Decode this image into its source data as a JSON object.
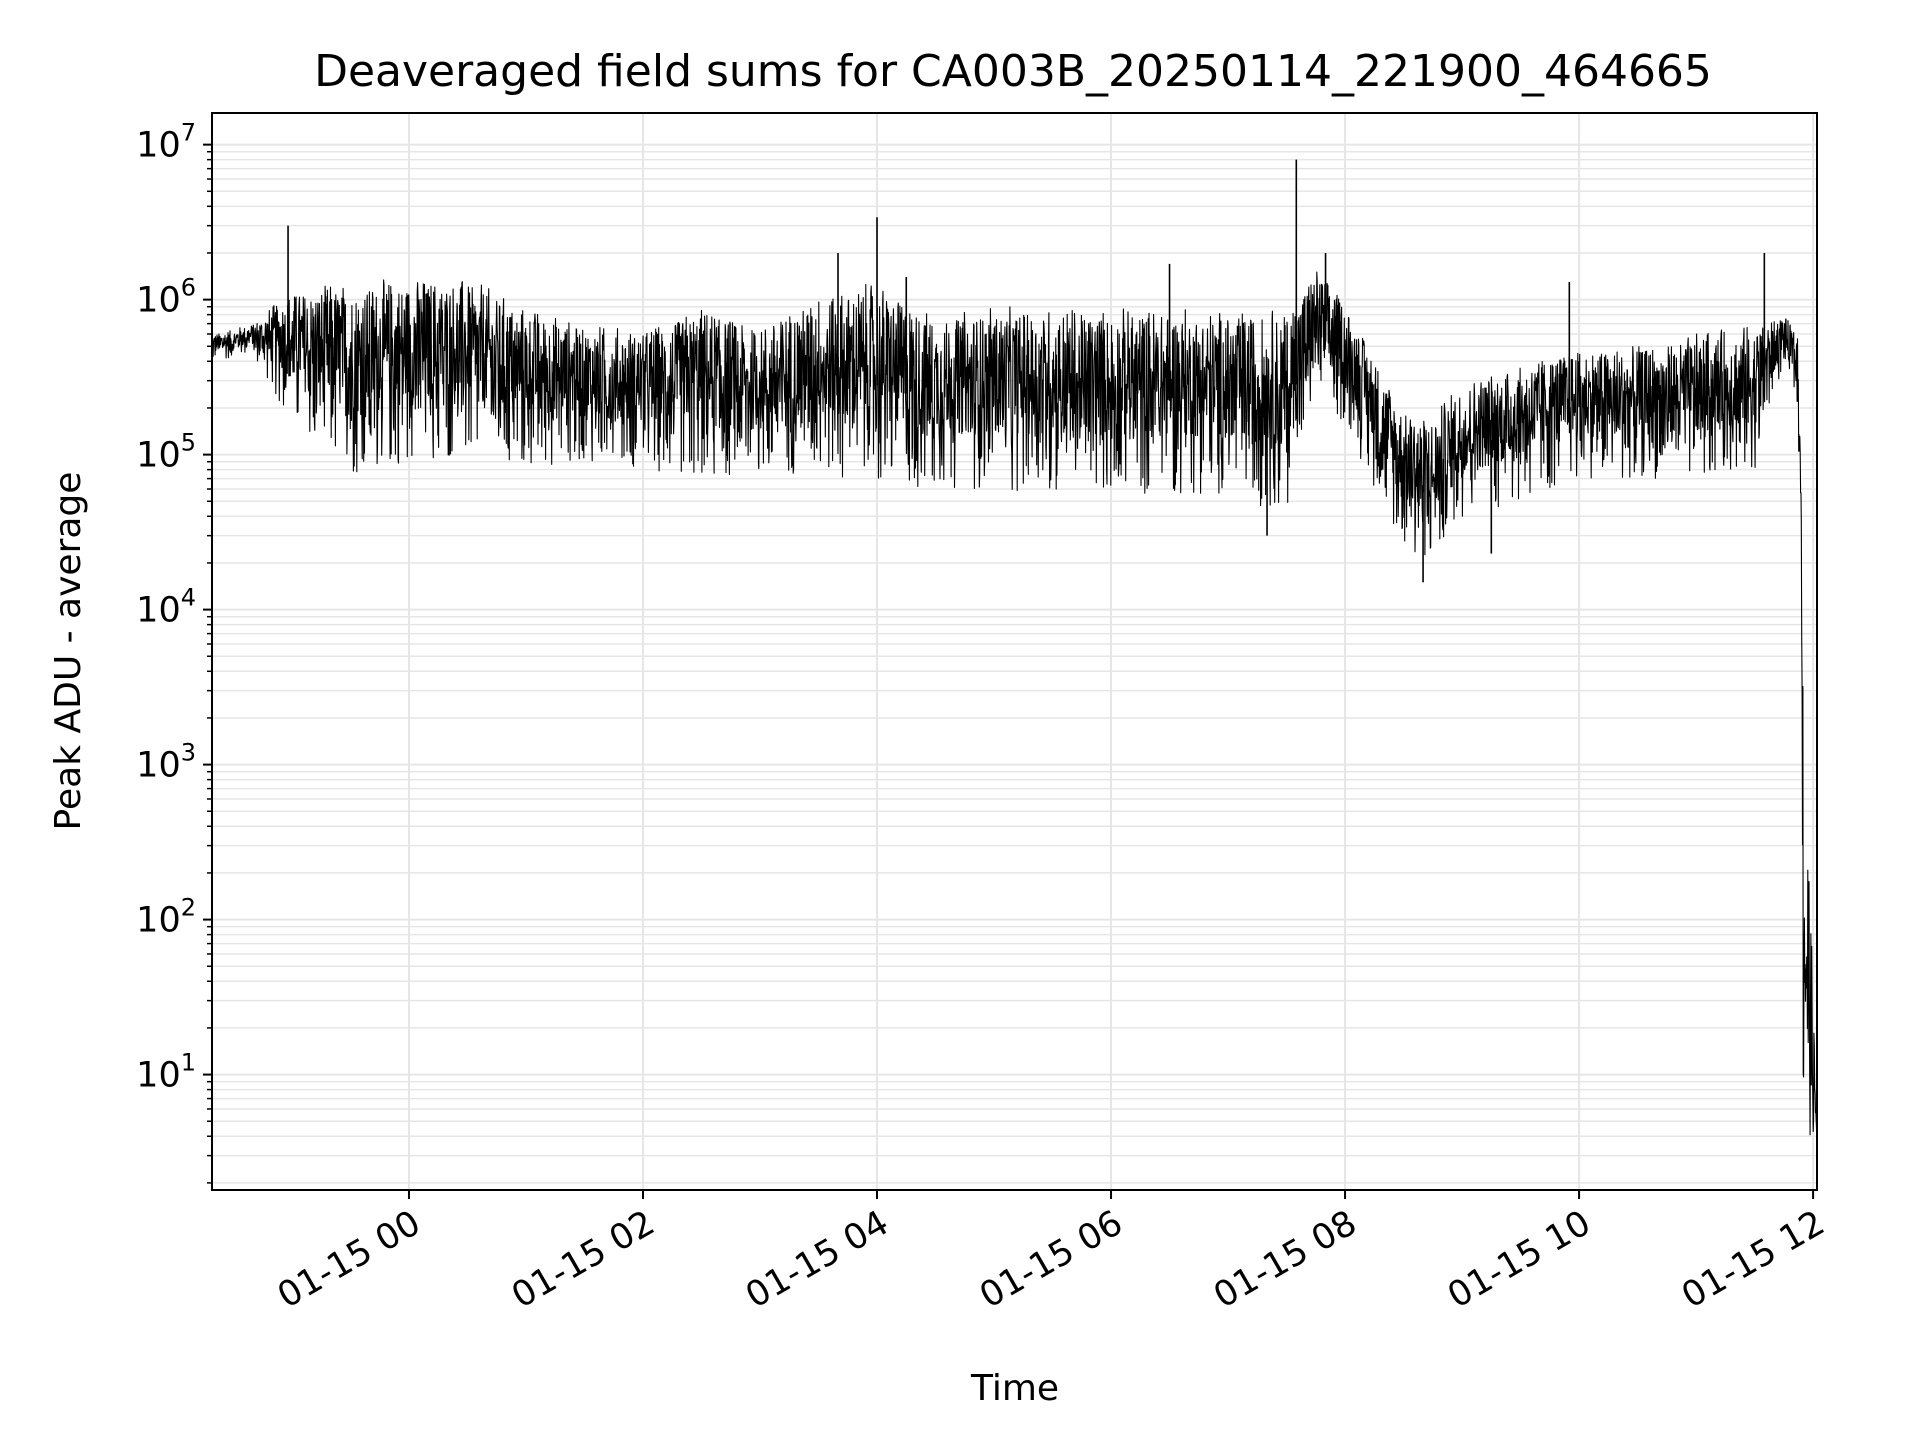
{
  "chart_data": {
    "type": "line",
    "title": "Deaveraged field sums for CA003B_20250114_221900_464665",
    "xlabel": "Time",
    "ylabel": "Peak ADU - average",
    "yscale": "log",
    "ylim": [
      1.8,
      16000000
    ],
    "xlim": [
      "01-14 22:19",
      "01-15 12:02"
    ],
    "grid": true,
    "line_color": "#000000",
    "grid_color": "#e6e6e6",
    "x_ticks": [
      {
        "label": "01-15 00",
        "time": "01-15 00:00"
      },
      {
        "label": "01-15 02",
        "time": "01-15 02:00"
      },
      {
        "label": "01-15 04",
        "time": "01-15 04:00"
      },
      {
        "label": "01-15 06",
        "time": "01-15 06:00"
      },
      {
        "label": "01-15 08",
        "time": "01-15 08:00"
      },
      {
        "label": "01-15 10",
        "time": "01-15 10:00"
      },
      {
        "label": "01-15 12",
        "time": "01-15 12:00"
      }
    ],
    "y_ticks": [
      {
        "base": "10",
        "exp": "1",
        "value": 10
      },
      {
        "base": "10",
        "exp": "2",
        "value": 100
      },
      {
        "base": "10",
        "exp": "3",
        "value": 1000
      },
      {
        "base": "10",
        "exp": "4",
        "value": 10000
      },
      {
        "base": "10",
        "exp": "5",
        "value": 100000
      },
      {
        "base": "10",
        "exp": "6",
        "value": 1000000
      },
      {
        "base": "10",
        "exp": "7",
        "value": 10000000
      }
    ],
    "series": [
      {
        "name": "",
        "envelope": [
          {
            "time": "01-14 22:19",
            "high": 600000,
            "low": 400000
          },
          {
            "time": "01-14 22:40",
            "high": 700000,
            "low": 450000
          },
          {
            "time": "01-14 23:00",
            "high": 1200000,
            "low": 150000
          },
          {
            "time": "01-14 23:30",
            "high": 1300000,
            "low": 70000
          },
          {
            "time": "01-15 00:00",
            "high": 1400000,
            "low": 90000
          },
          {
            "time": "01-15 00:30",
            "high": 1400000,
            "low": 90000
          },
          {
            "time": "01-15 01:00",
            "high": 900000,
            "low": 80000
          },
          {
            "time": "01-15 01:30",
            "high": 700000,
            "low": 90000
          },
          {
            "time": "01-15 02:00",
            "high": 650000,
            "low": 80000
          },
          {
            "time": "01-15 02:30",
            "high": 900000,
            "low": 70000
          },
          {
            "time": "01-15 03:00",
            "high": 700000,
            "low": 70000
          },
          {
            "time": "01-15 03:30",
            "high": 1100000,
            "low": 80000
          },
          {
            "time": "01-15 04:00",
            "high": 1300000,
            "low": 60000
          },
          {
            "time": "01-15 04:30",
            "high": 800000,
            "low": 60000
          },
          {
            "time": "01-15 05:00",
            "high": 900000,
            "low": 60000
          },
          {
            "time": "01-15 05:30",
            "high": 900000,
            "low": 55000
          },
          {
            "time": "01-15 06:00",
            "high": 900000,
            "low": 55000
          },
          {
            "time": "01-15 06:30",
            "high": 900000,
            "low": 55000
          },
          {
            "time": "01-15 07:00",
            "high": 850000,
            "low": 55000
          },
          {
            "time": "01-15 07:30",
            "high": 900000,
            "low": 40000
          },
          {
            "time": "01-15 07:45",
            "high": 1600000,
            "low": 250000
          },
          {
            "time": "01-15 08:00",
            "high": 1000000,
            "low": 150000
          },
          {
            "time": "01-15 08:30",
            "high": 200000,
            "low": 25000
          },
          {
            "time": "01-15 08:45",
            "high": 180000,
            "low": 20000
          },
          {
            "time": "01-15 09:00",
            "high": 300000,
            "low": 40000
          },
          {
            "time": "01-15 09:30",
            "high": 400000,
            "low": 50000
          },
          {
            "time": "01-15 10:00",
            "high": 500000,
            "low": 70000
          },
          {
            "time": "01-15 10:30",
            "high": 500000,
            "low": 70000
          },
          {
            "time": "01-15 11:00",
            "high": 600000,
            "low": 70000
          },
          {
            "time": "01-15 11:30",
            "high": 700000,
            "low": 80000
          },
          {
            "time": "01-15 11:45",
            "high": 800000,
            "low": 400000
          },
          {
            "time": "01-15 11:52",
            "high": 600000,
            "low": 200000
          },
          {
            "time": "01-15 11:54",
            "high": 60000,
            "low": 20000
          },
          {
            "time": "01-15 11:55",
            "high": 5000,
            "low": 4
          },
          {
            "time": "01-15 12:02",
            "high": 4.3,
            "low": 4
          }
        ],
        "spikes": [
          {
            "time": "01-14 22:58",
            "value": 3000000
          },
          {
            "time": "01-15 03:40",
            "value": 2000000
          },
          {
            "time": "01-15 04:00",
            "value": 3400000
          },
          {
            "time": "01-15 04:15",
            "value": 1400000
          },
          {
            "time": "01-15 06:30",
            "value": 1700000
          },
          {
            "time": "01-15 07:35",
            "value": 8000000
          },
          {
            "time": "01-15 07:50",
            "value": 2000000
          },
          {
            "time": "01-15 09:55",
            "value": 1300000
          },
          {
            "time": "01-15 11:35",
            "value": 2000000
          },
          {
            "time": "01-15 08:40",
            "value": 15000
          },
          {
            "time": "01-15 07:20",
            "value": 30000
          },
          {
            "time": "01-15 09:15",
            "value": 23000
          }
        ]
      }
    ]
  }
}
